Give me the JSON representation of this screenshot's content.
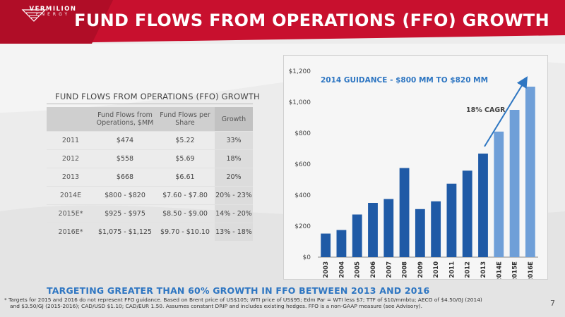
{
  "header": {
    "title": "FUND FLOWS FROM OPERATIONS (FFO) GROWTH",
    "logo_word": "VERMILION",
    "logo_sub": "ENERGY",
    "colors": {
      "header_red": "#c8102e",
      "accent_blue": "#2e76c2",
      "bar_blue": "#1f5aa6"
    }
  },
  "table": {
    "title": "FUND FLOWS FROM OPERATIONS (FFO) GROWTH",
    "headers": [
      "",
      "Fund Flows from Operations, $MM",
      "Fund Flows per Share",
      "Growth"
    ],
    "rows": [
      [
        "2011",
        "$474",
        "$5.22",
        "33%"
      ],
      [
        "2012",
        "$558",
        "$5.69",
        "18%"
      ],
      [
        "2013",
        "$668",
        "$6.61",
        "20%"
      ],
      [
        "2014E",
        "$800 - $820",
        "$7.60 - $7.80",
        "20% - 23%"
      ],
      [
        "2015E*",
        "$925 - $975",
        "$8.50 - $9.00",
        "14% - 20%"
      ],
      [
        "2016E*",
        "$1,075 - $1,125",
        "$9.70 - $10.10",
        "13% - 18%"
      ]
    ]
  },
  "chart_data": {
    "type": "bar",
    "title": "",
    "xlabel": "",
    "ylabel": "",
    "categories": [
      "2003",
      "2004",
      "2005",
      "2006",
      "2007",
      "2008",
      "2009",
      "2010",
      "2011",
      "2012",
      "2013",
      "2014E",
      "2015E",
      "2016E"
    ],
    "values": [
      152,
      175,
      275,
      350,
      375,
      575,
      310,
      360,
      474,
      558,
      668,
      810,
      950,
      1100
    ],
    "estimate_categories": [
      "2014E",
      "2015E",
      "2016E"
    ],
    "ylim": [
      0,
      1200
    ],
    "yticks": [
      0,
      200,
      400,
      600,
      800,
      1000,
      1200
    ],
    "ytick_labels": [
      "$0",
      "$200",
      "$400",
      "$600",
      "$800",
      "$1,000",
      "$1,200"
    ],
    "grid": false,
    "annotations": {
      "guidance": "2014 GUIDANCE - $800 MM TO $820 MM",
      "cagr": "18% CAGR"
    },
    "colors": {
      "actual": "#1f5aa6",
      "estimate": "#6f9fd8"
    }
  },
  "footer": {
    "headline": "TARGETING GREATER THAN 60% GROWTH IN FFO BETWEEN 2013 AND 2016",
    "footnote_line1": "* Targets for 2015 and 2016 do not represent FFO guidance. Based on Brent price of US$105; WTI price of US$95; Edm Par = WTI less $7; TTF of $10/mmbtu; AECO of $4.50/GJ (2014)",
    "footnote_line2": "and $3.50/GJ (2015-2016); CAD/USD $1.10; CAD/EUR 1.50. Assumes constant DRIP and includes existing hedges. FFO is a non-GAAP measure (see Advisory).",
    "page_number": "7"
  }
}
